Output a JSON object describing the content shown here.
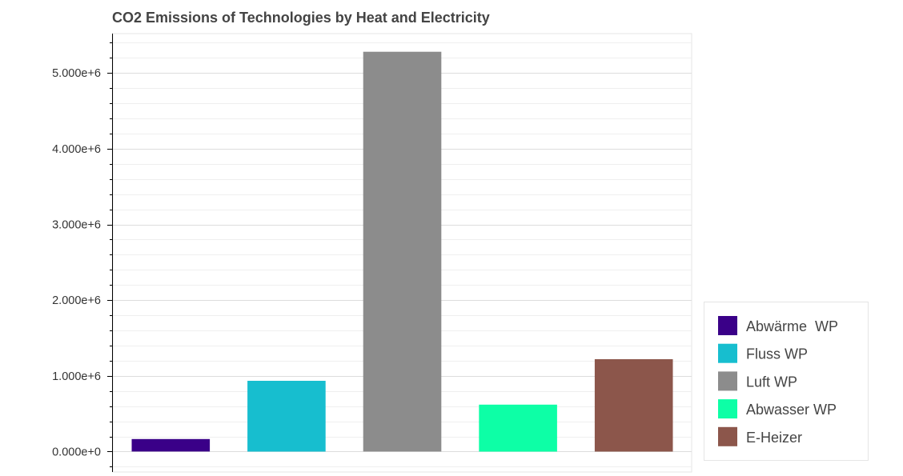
{
  "chart_data": {
    "type": "bar",
    "title": "CO2 Emissions of Technologies by Heat and Electricity",
    "xlabel": "",
    "ylabel": "",
    "categories": [
      "Abwärme  WP",
      "Fluss WP",
      "Luft WP",
      "Abwasser WP",
      "E-Heizer"
    ],
    "values": [
      165000,
      935000,
      5280000,
      620000,
      1220000
    ],
    "colors": [
      "#3a0088",
      "#17becf",
      "#8c8c8c",
      "#0dffa6",
      "#8c564b"
    ],
    "ylim": [
      -270000,
      5520000
    ],
    "yticks": [
      0,
      1000000,
      2000000,
      3000000,
      4000000,
      5000000
    ],
    "ytick_labels": [
      "0.000e+0",
      "1.000e+6",
      "2.000e+6",
      "3.000e+6",
      "4.000e+6",
      "5.000e+6"
    ],
    "grid": true,
    "legend": {
      "position": "bottom-right-outside",
      "entries": [
        "Abwärme  WP",
        "Fluss WP",
        "Luft WP",
        "Abwasser WP",
        "E-Heizer"
      ]
    }
  }
}
